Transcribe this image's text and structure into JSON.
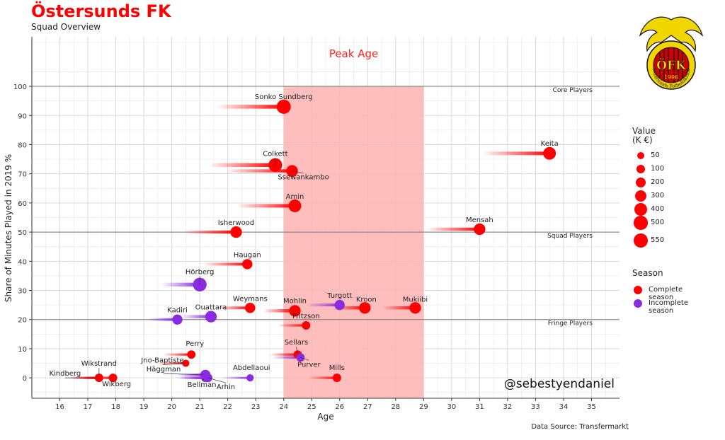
{
  "header": {
    "title": "Östersunds FK",
    "subtitle": "Squad Overview"
  },
  "logo": {
    "text": "ÖFK",
    "year": "1996",
    "ring_text": "Östersunds Fotbollsklubb"
  },
  "footer": {
    "source": "Data Source: Transfermarkt"
  },
  "legend": {
    "value_title": [
      "Value",
      "(K €)"
    ],
    "value_levels": [
      50,
      100,
      200,
      300,
      400,
      500,
      550
    ],
    "season_title": "Season",
    "season_items": [
      {
        "label": "Complete season",
        "color": "#ff0000"
      },
      {
        "label": "Incomplete season",
        "color": "#8a2be2"
      }
    ]
  },
  "colors": {
    "complete": "#ff0000",
    "incomplete": "#8a2be2",
    "peak_band": "#ffb3b3",
    "title": "#ff0000"
  },
  "chart_data": {
    "type": "scatter",
    "xlabel": "Age",
    "ylabel": "Share of Minutes Played in 2019 %",
    "xlim": [
      15,
      36
    ],
    "ylim": [
      -7,
      117
    ],
    "xticks": [
      16,
      17,
      18,
      19,
      20,
      21,
      22,
      23,
      24,
      25,
      26,
      27,
      28,
      29,
      30,
      31,
      32,
      33,
      34,
      35
    ],
    "yticks": [
      0,
      10,
      20,
      30,
      40,
      50,
      60,
      70,
      80,
      90,
      100
    ],
    "grid": true,
    "peak_age": {
      "from": 24,
      "to": 29,
      "label": "Peak Age"
    },
    "bands": [
      {
        "y": 100,
        "label": "Core Players"
      },
      {
        "y": 50,
        "label": "Squad Players"
      },
      {
        "y": 20,
        "label": "Fringe Players"
      }
    ],
    "watermark": "@sebestyendaniel",
    "players": [
      {
        "name": "Sonko Sundberg",
        "age": 24.0,
        "minutes": 93,
        "value": 550,
        "season": "complete"
      },
      {
        "name": "Keita",
        "age": 33.5,
        "minutes": 77,
        "value": 400,
        "season": "complete"
      },
      {
        "name": "Colkett",
        "age": 23.7,
        "minutes": 73,
        "value": 500,
        "season": "complete"
      },
      {
        "name": "Ssewankambo",
        "age": 24.3,
        "minutes": 71,
        "value": 300,
        "season": "complete"
      },
      {
        "name": "Amin",
        "age": 24.4,
        "minutes": 59,
        "value": 400,
        "season": "complete"
      },
      {
        "name": "Mensah",
        "age": 31.0,
        "minutes": 51,
        "value": 300,
        "season": "complete"
      },
      {
        "name": "Isherwood",
        "age": 22.3,
        "minutes": 50,
        "value": 300,
        "season": "complete"
      },
      {
        "name": "Haugan",
        "age": 22.7,
        "minutes": 39,
        "value": 200,
        "season": "complete"
      },
      {
        "name": "Hörberg",
        "age": 21.0,
        "minutes": 32,
        "value": 500,
        "season": "incomplete"
      },
      {
        "name": "Turgott",
        "age": 26.0,
        "minutes": 25,
        "value": 200,
        "season": "incomplete"
      },
      {
        "name": "Kroon",
        "age": 26.9,
        "minutes": 24,
        "value": 300,
        "season": "complete"
      },
      {
        "name": "Mukiibi",
        "age": 28.7,
        "minutes": 24,
        "value": 300,
        "season": "complete"
      },
      {
        "name": "Weymans",
        "age": 22.8,
        "minutes": 24,
        "value": 200,
        "season": "complete"
      },
      {
        "name": "Mohlin",
        "age": 24.4,
        "minutes": 23,
        "value": 300,
        "season": "complete"
      },
      {
        "name": "Ouattara",
        "age": 21.4,
        "minutes": 21,
        "value": 300,
        "season": "incomplete"
      },
      {
        "name": "Kadiri",
        "age": 20.2,
        "minutes": 20,
        "value": 200,
        "season": "incomplete"
      },
      {
        "name": "Fritzson",
        "age": 24.8,
        "minutes": 18,
        "value": 100,
        "season": "complete"
      },
      {
        "name": "Perry",
        "age": 20.7,
        "minutes": 8,
        "value": 100,
        "season": "complete"
      },
      {
        "name": "Sellars",
        "age": 24.5,
        "minutes": 8,
        "value": 100,
        "season": "complete"
      },
      {
        "name": "Purver",
        "age": 24.6,
        "minutes": 7,
        "value": 100,
        "season": "incomplete"
      },
      {
        "name": "Jno-Baptiste",
        "age": 20.5,
        "minutes": 5,
        "value": 50,
        "season": "complete"
      },
      {
        "name": "Abdellaoui",
        "age": 22.8,
        "minutes": 0,
        "value": 50,
        "season": "incomplete"
      },
      {
        "name": "Mills",
        "age": 25.9,
        "minutes": 0,
        "value": 100,
        "season": "complete"
      },
      {
        "name": "Wikstrand",
        "age": 17.4,
        "minutes": 0,
        "value": 100,
        "season": "complete"
      },
      {
        "name": "Kindberg",
        "age": 17.4,
        "minutes": 0,
        "value": 50,
        "season": "complete"
      },
      {
        "name": "Wikberg",
        "age": 17.9,
        "minutes": 0,
        "value": 100,
        "season": "complete"
      },
      {
        "name": "Häggman",
        "age": 21.2,
        "minutes": 1,
        "value": 200,
        "season": "incomplete"
      },
      {
        "name": "Bellman",
        "age": 21.2,
        "minutes": 0,
        "value": 100,
        "season": "incomplete"
      },
      {
        "name": "Arhin",
        "age": 21.3,
        "minutes": 0,
        "value": 100,
        "season": "incomplete"
      }
    ]
  }
}
